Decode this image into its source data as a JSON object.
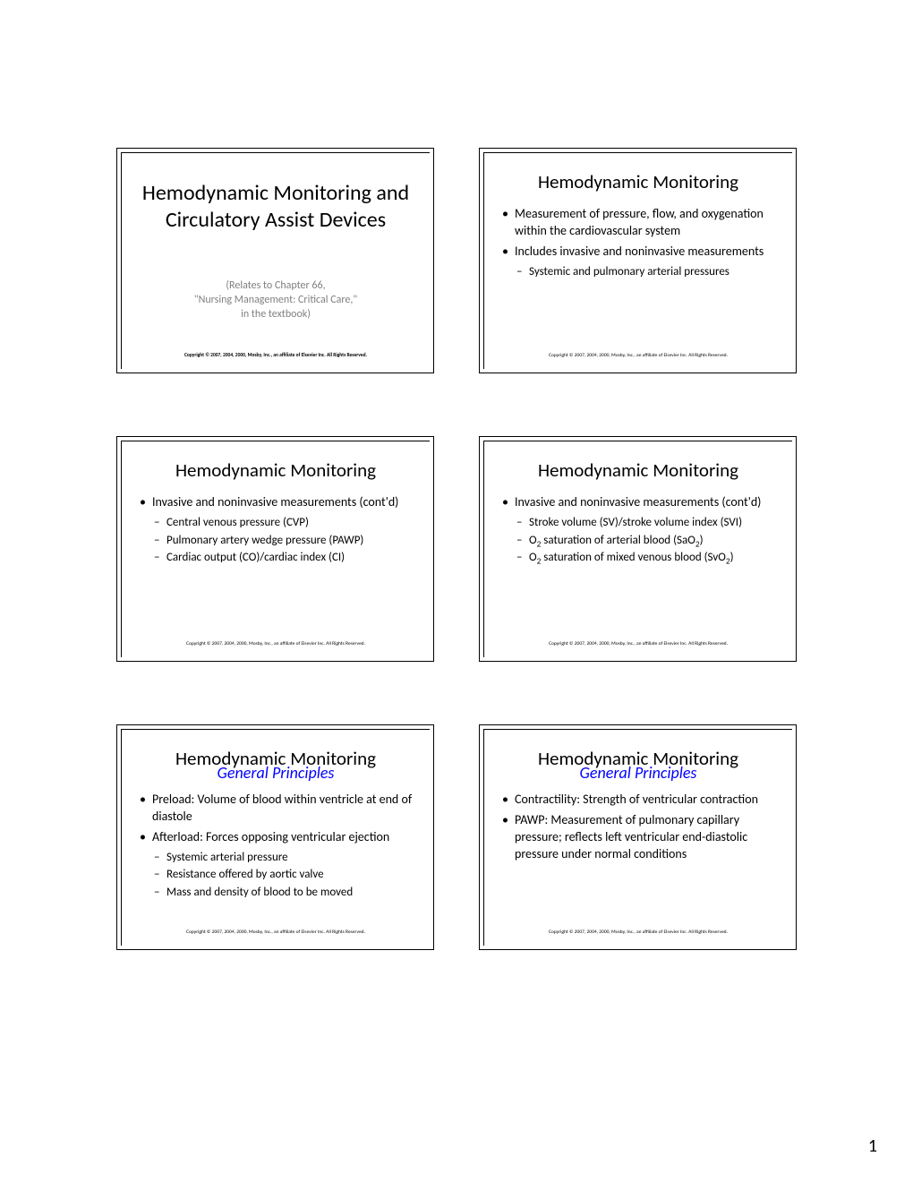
{
  "page_number": "1",
  "copyright": "Copyright © 2007, 2004, 2000, Mosby, Inc., an affiliate of Elsevier Inc. All Rights Reserved.",
  "slides": [
    {
      "kind": "title",
      "title_lines": [
        "Hemodynamic Monitoring and",
        "Circulatory Assist Devices"
      ],
      "relates_lines": [
        "(Relates to Chapter 66,",
        "\"Nursing Management: Critical Care,\"",
        "in the textbook)"
      ],
      "copyright_bold": true
    },
    {
      "kind": "content",
      "title": "Hemodynamic Monitoring",
      "subtitle": null,
      "bullets": [
        {
          "text": "Measurement of pressure, flow, and oxygenation within the cardiovascular system",
          "children": []
        },
        {
          "text": "Includes invasive and noninvasive measurements",
          "children": [
            {
              "text": "Systemic and pulmonary arterial pressures"
            }
          ]
        }
      ],
      "copyright_bold": false
    },
    {
      "kind": "content",
      "title": "Hemodynamic Monitoring",
      "subtitle": null,
      "bullets": [
        {
          "text": "Invasive and noninvasive measurements (cont'd)",
          "children": [
            {
              "text": "Central venous pressure (CVP)"
            },
            {
              "text": "Pulmonary artery wedge pressure (PAWP)"
            },
            {
              "text": "Cardiac output (CO)/cardiac index (CI)"
            }
          ]
        }
      ],
      "copyright_bold": false
    },
    {
      "kind": "content",
      "title": "Hemodynamic Monitoring",
      "subtitle": null,
      "bullets": [
        {
          "text": "Invasive and noninvasive measurements (cont'd)",
          "children": [
            {
              "text": "Stroke volume (SV)/stroke volume index (SVI)"
            },
            {
              "html": "O<span class=\"subnum\">2</span> saturation of arterial blood (SaO<span class=\"subnum\">2</span>)"
            },
            {
              "html": "O<span class=\"subnum\">2</span> saturation of mixed venous blood (SvO<span class=\"subnum\">2</span>)"
            }
          ]
        }
      ],
      "copyright_bold": false
    },
    {
      "kind": "content",
      "title": "Hemodynamic Monitoring",
      "subtitle": "General Principles",
      "bullets": [
        {
          "text": "Preload: Volume of blood within ventricle at end of diastole",
          "children": []
        },
        {
          "text": "Afterload: Forces opposing ventricular ejection",
          "children": [
            {
              "text": "Systemic arterial pressure"
            },
            {
              "text": "Resistance offered by aortic valve"
            },
            {
              "text": "Mass and density of blood to be moved"
            }
          ]
        }
      ],
      "copyright_bold": false
    },
    {
      "kind": "content",
      "title": "Hemodynamic Monitoring",
      "subtitle": "General Principles",
      "bullets": [
        {
          "text": "Contractility: Strength of ventricular contraction",
          "children": []
        },
        {
          "text": "PAWP: Measurement of pulmonary capillary pressure; reflects left ventricular end-diastolic pressure under normal conditions",
          "children": []
        }
      ],
      "copyright_bold": false
    }
  ]
}
